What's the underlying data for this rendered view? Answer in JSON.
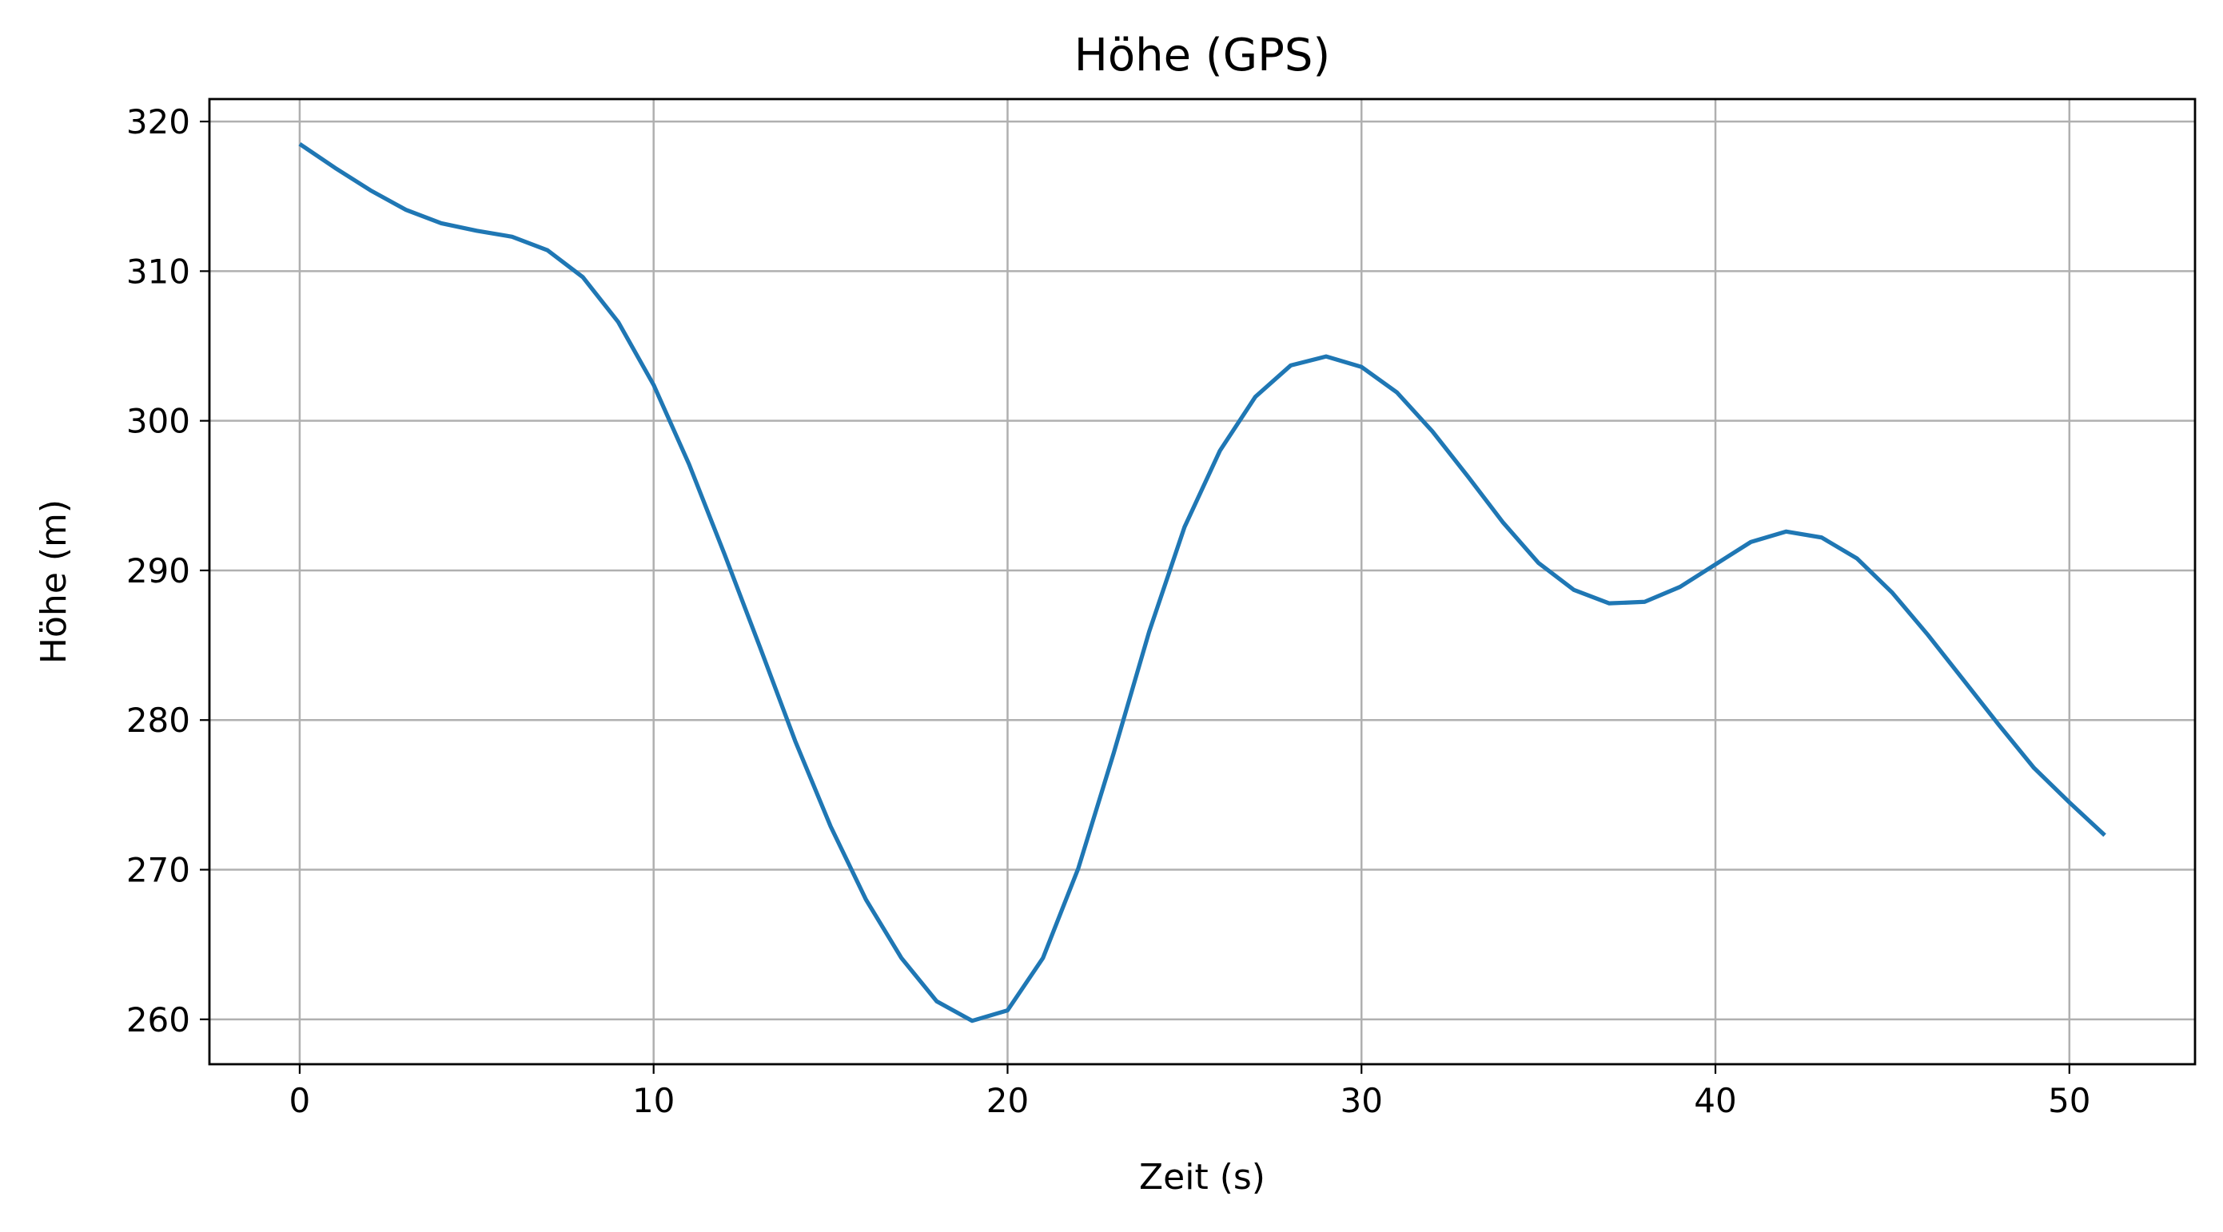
{
  "chart_data": {
    "type": "line",
    "title": "Höhe (GPS)",
    "xlabel": "Zeit (s)",
    "ylabel": "Höhe (m)",
    "xlim": [
      -2.55,
      53.55
    ],
    "ylim": [
      257.0,
      321.5
    ],
    "grid": true,
    "x_ticks": [
      0,
      10,
      20,
      30,
      40,
      50
    ],
    "y_ticks": [
      260,
      270,
      280,
      290,
      300,
      310,
      320
    ],
    "x_tick_labels": [
      "0",
      "10",
      "20",
      "30",
      "40",
      "50"
    ],
    "y_tick_labels": [
      "260",
      "270",
      "280",
      "290",
      "300",
      "310",
      "320"
    ],
    "series": [
      {
        "color": "#1f77b4",
        "x": [
          0,
          1,
          2,
          3,
          4,
          5,
          6,
          7,
          8,
          9,
          10,
          11,
          12,
          13,
          14,
          15,
          16,
          17,
          18,
          19,
          20,
          21,
          22,
          23,
          24,
          25,
          26,
          27,
          28,
          29,
          30,
          31,
          32,
          33,
          34,
          35,
          36,
          37,
          38,
          39,
          40,
          41,
          42,
          43,
          44,
          45,
          46,
          47,
          48,
          49,
          50,
          51
        ],
        "y": [
          318.5,
          316.9,
          315.4,
          314.1,
          313.2,
          312.7,
          312.3,
          311.4,
          309.6,
          306.6,
          302.4,
          297.1,
          291.1,
          284.9,
          278.6,
          272.9,
          268.0,
          264.1,
          261.2,
          259.9,
          260.6,
          264.1,
          270.1,
          277.8,
          285.9,
          292.9,
          298.0,
          301.6,
          303.7,
          304.3,
          303.6,
          301.9,
          299.3,
          296.3,
          293.2,
          290.5,
          288.7,
          287.8,
          287.9,
          288.9,
          290.4,
          291.9,
          292.6,
          292.2,
          290.8,
          288.5,
          285.7,
          282.7,
          279.7,
          276.8,
          274.5,
          272.3
        ]
      }
    ]
  }
}
